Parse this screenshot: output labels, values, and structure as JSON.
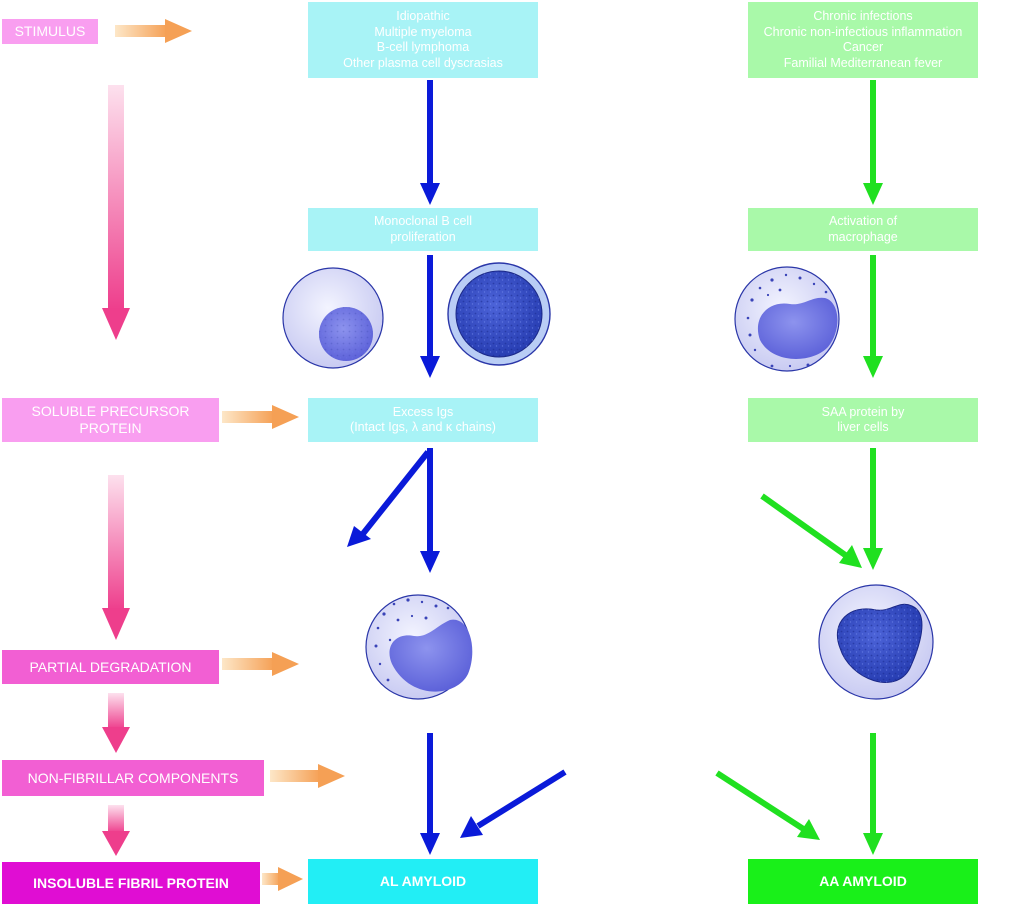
{
  "stages": {
    "stimulus": "STIMULUS",
    "soluble_precursor": "SOLUBLE PRECURSOR\nPROTEIN",
    "partial_degradation": "PARTIAL DEGRADATION",
    "non_fibrillar": "NON-FIBRILLAR COMPONENTS",
    "insoluble_fibril": "INSOLUBLE FIBRIL PROTEIN"
  },
  "al_pathway": {
    "stimulus": "Idiopathic\nMultiple myeloma\nB-cell lymphoma\nOther plasma cell dyscrasias",
    "proliferation": "Monoclonal B cell\nproliferation",
    "precursor": "Excess Igs\n(Intact Igs, λ and κ chains)",
    "product": "AL AMYLOID"
  },
  "aa_pathway": {
    "stimulus": "Chronic infections\nChronic non-infectious inflammation\nCancer\nFamilial Mediterranean fever",
    "activation": "Activation of\nmacrophage",
    "precursor": "SAA protein by\nliver cells",
    "product": "AA AMYLOID"
  },
  "colors": {
    "stage_light": "#f99ef0",
    "stage_medium": "#f25fd3",
    "stage_dark": "#e00dd3",
    "al_box": "#a8f3f6",
    "al_product": "#22eef5",
    "al_arrow": "#0a1ad9",
    "aa_box": "#a9f9a9",
    "aa_product": "#19f019",
    "aa_arrow": "#20e020",
    "orange_arrow": "#f5a55c",
    "pink_arrow": "#f0428f"
  },
  "icons": [
    "plasma-cell-icon",
    "lymphocyte-icon",
    "macrophage-icon",
    "monocyte-icon",
    "activated-macrophage-icon"
  ]
}
